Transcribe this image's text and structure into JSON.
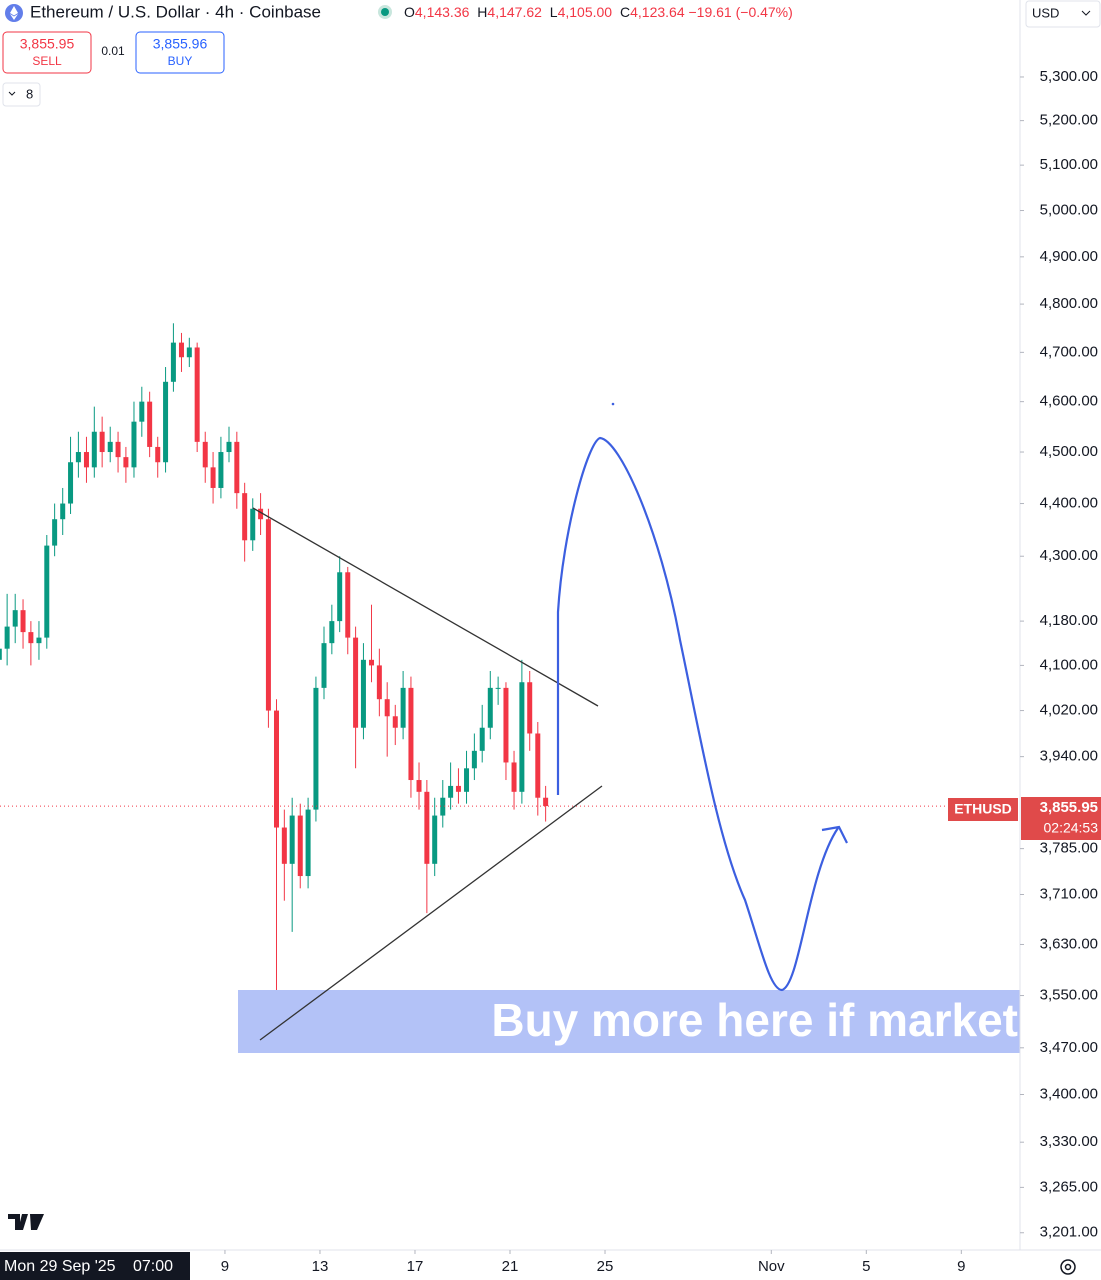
{
  "chart_data": {
    "type": "candlestick",
    "title": "Ethereum / U.S. Dollar · 4h · Coinbase",
    "ohlc_legend": [
      {
        "key": "O",
        "text": "4,143.36"
      },
      {
        "key": "H",
        "text": "4,147.62"
      },
      {
        "key": "L",
        "text": "4,105.00"
      },
      {
        "key": "C",
        "text": "4,123.64"
      },
      {
        "key": "",
        "text": "−19.61 (−0.47%)"
      }
    ],
    "sell": {
      "price": "3,855.95",
      "label": "SELL"
    },
    "spread": 0.01,
    "buy": {
      "price": "3,855.96",
      "label": "BUY"
    },
    "indicators_count": 8,
    "currency": "USD",
    "symbol_label": "ETHUSD",
    "last_price_label": "3,855.95",
    "countdown": "02:24:53",
    "crosshair_date": "Mon 29 Sep '25",
    "crosshair_time": "07:00",
    "annotation": "Buy more here if market",
    "log_scale": true,
    "grid": false,
    "up_color": "#089981",
    "down_color": "#f23645",
    "x": [
      -0.5,
      -0.17,
      0.17,
      0.5,
      0.83,
      1.17,
      1.5,
      1.83,
      2.17,
      2.5,
      2.83,
      3.17,
      3.5,
      3.83,
      4.17,
      4.5,
      4.83,
      5.17,
      5.5,
      5.83,
      6.17,
      6.5,
      6.83,
      7.17,
      7.5,
      7.83,
      8.17,
      8.5,
      8.83,
      9.17,
      9.5,
      9.83,
      10.17,
      10.5,
      10.83,
      11.17,
      11.5,
      11.83,
      12.17,
      12.5,
      12.83,
      13.17,
      13.5,
      13.83,
      14.17,
      14.5,
      14.83,
      15.17,
      15.5,
      15.83,
      16.17,
      16.5,
      16.83,
      17.17,
      17.5,
      17.83,
      18.17,
      18.5,
      18.83,
      19.17,
      19.5,
      19.83,
      20.17,
      20.5,
      20.83,
      21.17,
      21.5,
      21.83,
      22.17,
      22.5
    ],
    "open": [
      4110,
      4130,
      4170,
      4200,
      4160,
      4140,
      4150,
      4320,
      4370,
      4400,
      4480,
      4500,
      4470,
      4540,
      4500,
      4520,
      4490,
      4470,
      4560,
      4600,
      4510,
      4480,
      4640,
      4720,
      4690,
      4710,
      4520,
      4470,
      4430,
      4500,
      4520,
      4420,
      4330,
      4390,
      4370,
      4020,
      3820,
      3760,
      3840,
      3740,
      3850,
      4060,
      4140,
      4180,
      4270,
      4150,
      3990,
      4110,
      4100,
      4040,
      4010,
      3990,
      4060,
      3900,
      3880,
      3760,
      3840,
      3870,
      3890,
      3880,
      3920,
      3950,
      3990,
      4060,
      4060,
      3930,
      3880,
      4070,
      3980,
      3870
    ],
    "high": [
      4160,
      4230,
      4230,
      4220,
      4180,
      4180,
      4340,
      4400,
      4430,
      4530,
      4540,
      4530,
      4590,
      4570,
      4550,
      4540,
      4510,
      4600,
      4630,
      4620,
      4530,
      4670,
      4760,
      4740,
      4730,
      4720,
      4540,
      4500,
      4530,
      4550,
      4540,
      4440,
      4410,
      4420,
      4390,
      4040,
      3850,
      3870,
      3860,
      3870,
      4080,
      4170,
      4210,
      4300,
      4280,
      4170,
      4140,
      4210,
      4130,
      4070,
      4030,
      4090,
      4080,
      3930,
      3900,
      3870,
      3900,
      3930,
      3920,
      3950,
      3980,
      4030,
      4090,
      4080,
      4070,
      3950,
      4110,
      4090,
      4000,
      3890
    ],
    "low": [
      4080,
      4100,
      4140,
      4130,
      4100,
      4110,
      4130,
      4300,
      4340,
      4380,
      4450,
      4440,
      4450,
      4470,
      4480,
      4460,
      4440,
      4450,
      4530,
      4490,
      4450,
      4460,
      4620,
      4660,
      4670,
      4500,
      4440,
      4400,
      4410,
      4480,
      4390,
      4290,
      4310,
      4340,
      3990,
      3500,
      3700,
      3650,
      3720,
      3720,
      3830,
      4040,
      4120,
      4160,
      4120,
      3920,
      3970,
      4070,
      4010,
      3940,
      3960,
      3970,
      3870,
      3850,
      3680,
      3740,
      3820,
      3850,
      3860,
      3860,
      3900,
      3930,
      3970,
      4030,
      3900,
      3850,
      3860,
      3950,
      3840,
      3830
    ],
    "close": [
      4130,
      4170,
      4200,
      4160,
      4140,
      4150,
      4320,
      4370,
      4400,
      4480,
      4500,
      4470,
      4540,
      4500,
      4520,
      4490,
      4470,
      4560,
      4600,
      4510,
      4480,
      4640,
      4720,
      4690,
      4710,
      4520,
      4470,
      4430,
      4500,
      4520,
      4420,
      4330,
      4390,
      4370,
      4020,
      3820,
      3760,
      3840,
      3740,
      3850,
      4060,
      4140,
      4180,
      4270,
      4150,
      3990,
      4110,
      4100,
      4040,
      4010,
      3990,
      4060,
      3900,
      3880,
      3760,
      3840,
      3870,
      3890,
      3880,
      3920,
      3950,
      3990,
      4060,
      4060,
      3930,
      3880,
      4070,
      3980,
      3870,
      3855.95
    ],
    "xlim": [
      -0.47,
      42.47
    ],
    "xticks": [
      9,
      13,
      17,
      21,
      25,
      {
        "value": 32,
        "label": "Nov"
      },
      {
        "value": 36,
        "label": "5"
      },
      {
        "value": 40,
        "label": "9"
      }
    ],
    "ylim": [
      3177,
      5481
    ],
    "yticks": [
      {
        "value": 5300,
        "label": "5,300.00"
      },
      {
        "value": 5200,
        "label": "5,200.00"
      },
      {
        "value": 5100,
        "label": "5,100.00"
      },
      {
        "value": 5000,
        "label": "5,000.00"
      },
      {
        "value": 4900,
        "label": "4,900.00"
      },
      {
        "value": 4800,
        "label": "4,800.00"
      },
      {
        "value": 4700,
        "label": "4,700.00"
      },
      {
        "value": 4600,
        "label": "4,600.00"
      },
      {
        "value": 4500,
        "label": "4,500.00"
      },
      {
        "value": 4400,
        "label": "4,400.00"
      },
      {
        "value": 4300,
        "label": "4,300.00"
      },
      {
        "value": 4180,
        "label": "4,180.00"
      },
      {
        "value": 4100,
        "label": "4,100.00"
      },
      {
        "value": 4020,
        "label": "4,020.00"
      },
      {
        "value": 3940,
        "label": "3,940.00"
      },
      {
        "value": 3785,
        "label": "3,785.00"
      },
      {
        "value": 3710,
        "label": "3,710.00"
      },
      {
        "value": 3630,
        "label": "3,630.00"
      },
      {
        "value": 3550,
        "label": "3,550.00"
      },
      {
        "value": 3470,
        "label": "3,470.00"
      },
      {
        "value": 3400,
        "label": "3,400.00"
      },
      {
        "value": 3330,
        "label": "3,330.00"
      },
      {
        "value": 3265,
        "label": "3,265.00"
      },
      {
        "value": 3201,
        "label": "3,201.00"
      }
    ]
  }
}
